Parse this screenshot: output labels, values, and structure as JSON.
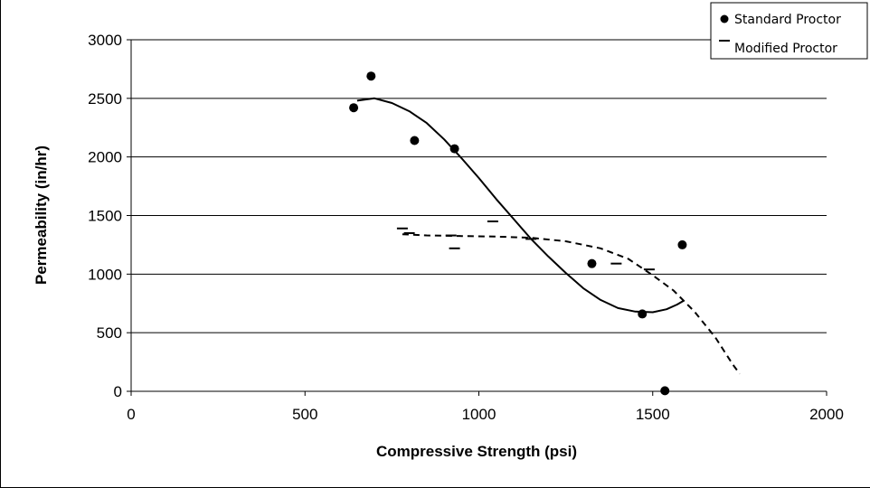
{
  "chart_data": {
    "type": "scatter",
    "title": "",
    "xlabel": "Compressive Strength (psi)",
    "ylabel": "Permeability (in/hr)",
    "xlim": [
      0,
      2000
    ],
    "ylim": [
      0,
      3000
    ],
    "x_ticks": [
      "0",
      "500",
      "1000",
      "1500",
      "2000"
    ],
    "y_ticks": [
      "0",
      "500",
      "1000",
      "1500",
      "2000",
      "2500",
      "3000"
    ],
    "grid": "horizontal",
    "legend_position": "top-right",
    "series": [
      {
        "name": "Standard Proctor",
        "marker": "circle",
        "color": "#000000",
        "points": [
          {
            "x": 640,
            "y": 2420
          },
          {
            "x": 690,
            "y": 2690
          },
          {
            "x": 815,
            "y": 2140
          },
          {
            "x": 930,
            "y": 2070
          },
          {
            "x": 1325,
            "y": 1090
          },
          {
            "x": 1470,
            "y": 660
          },
          {
            "x": 1535,
            "y": 5
          },
          {
            "x": 1585,
            "y": 1250
          }
        ],
        "trendline": {
          "style": "solid",
          "points": [
            {
              "x": 650,
              "y": 2480
            },
            {
              "x": 700,
              "y": 2500
            },
            {
              "x": 750,
              "y": 2460
            },
            {
              "x": 800,
              "y": 2390
            },
            {
              "x": 850,
              "y": 2290
            },
            {
              "x": 900,
              "y": 2150
            },
            {
              "x": 950,
              "y": 1990
            },
            {
              "x": 1000,
              "y": 1820
            },
            {
              "x": 1050,
              "y": 1640
            },
            {
              "x": 1100,
              "y": 1470
            },
            {
              "x": 1150,
              "y": 1300
            },
            {
              "x": 1200,
              "y": 1150
            },
            {
              "x": 1250,
              "y": 1010
            },
            {
              "x": 1300,
              "y": 880
            },
            {
              "x": 1350,
              "y": 780
            },
            {
              "x": 1400,
              "y": 710
            },
            {
              "x": 1450,
              "y": 680
            },
            {
              "x": 1500,
              "y": 675
            },
            {
              "x": 1540,
              "y": 700
            },
            {
              "x": 1570,
              "y": 740
            },
            {
              "x": 1590,
              "y": 775
            }
          ]
        }
      },
      {
        "name": "Modified Proctor",
        "marker": "dash",
        "color": "#000000",
        "points": [
          {
            "x": 780,
            "y": 1390
          },
          {
            "x": 800,
            "y": 1350
          },
          {
            "x": 920,
            "y": 1330
          },
          {
            "x": 930,
            "y": 1220
          },
          {
            "x": 1040,
            "y": 1450
          },
          {
            "x": 1150,
            "y": 1300
          },
          {
            "x": 1395,
            "y": 1090
          },
          {
            "x": 1490,
            "y": 1040
          }
        ],
        "trendline": {
          "style": "dashed",
          "points": [
            {
              "x": 780,
              "y": 1340
            },
            {
              "x": 850,
              "y": 1330
            },
            {
              "x": 950,
              "y": 1325
            },
            {
              "x": 1050,
              "y": 1320
            },
            {
              "x": 1150,
              "y": 1310
            },
            {
              "x": 1250,
              "y": 1280
            },
            {
              "x": 1350,
              "y": 1220
            },
            {
              "x": 1430,
              "y": 1130
            },
            {
              "x": 1500,
              "y": 990
            },
            {
              "x": 1560,
              "y": 860
            },
            {
              "x": 1620,
              "y": 680
            },
            {
              "x": 1680,
              "y": 460
            },
            {
              "x": 1730,
              "y": 230
            },
            {
              "x": 1750,
              "y": 150
            }
          ]
        }
      }
    ]
  }
}
